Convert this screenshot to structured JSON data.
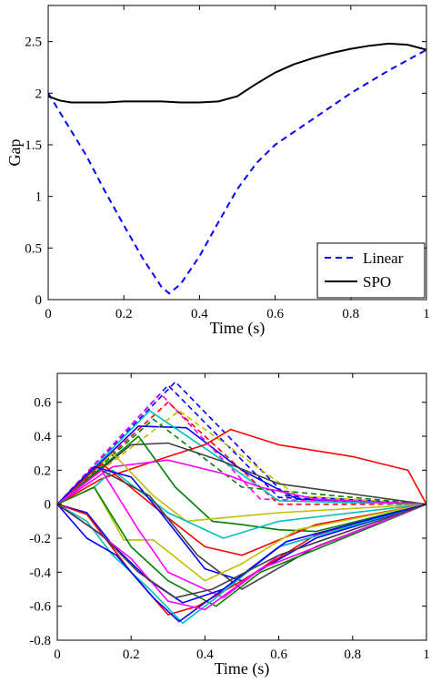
{
  "chart_data": [
    {
      "type": "line",
      "title": "",
      "xlabel": "Time (s)",
      "ylabel": "Gap",
      "xlim": [
        0,
        1
      ],
      "ylim": [
        0,
        2.85
      ],
      "xticks": [
        0,
        0.2,
        0.4,
        0.6,
        0.8,
        1
      ],
      "xtick_labels": [
        "0",
        "0.2",
        "0.4",
        "0.6",
        "0.8",
        "1"
      ],
      "yticks": [
        0,
        0.5,
        1,
        1.5,
        2,
        2.5
      ],
      "ytick_labels": [
        "0",
        "0.5",
        "1",
        "1.5",
        "2",
        "2.5"
      ],
      "grid": false,
      "legend_position": "bottom-right",
      "series": [
        {
          "name": "Linear",
          "color": "#0000ff",
          "style": "dashed",
          "x": [
            0,
            0.05,
            0.1,
            0.15,
            0.2,
            0.25,
            0.3,
            0.32,
            0.35,
            0.4,
            0.45,
            0.5,
            0.55,
            0.6,
            0.62,
            0.7,
            0.8,
            0.9,
            1.0
          ],
          "y": [
            2.0,
            1.7,
            1.4,
            1.05,
            0.72,
            0.4,
            0.12,
            0.06,
            0.15,
            0.42,
            0.75,
            1.07,
            1.32,
            1.5,
            1.55,
            1.75,
            2.0,
            2.22,
            2.42
          ]
        },
        {
          "name": "SPO",
          "color": "#000000",
          "style": "solid",
          "x": [
            0,
            0.03,
            0.06,
            0.1,
            0.15,
            0.2,
            0.25,
            0.3,
            0.35,
            0.4,
            0.45,
            0.5,
            0.55,
            0.6,
            0.65,
            0.7,
            0.75,
            0.8,
            0.85,
            0.9,
            0.95,
            1.0
          ],
          "y": [
            1.97,
            1.93,
            1.91,
            1.91,
            1.91,
            1.92,
            1.92,
            1.92,
            1.91,
            1.91,
            1.92,
            1.97,
            2.09,
            2.2,
            2.28,
            2.34,
            2.39,
            2.43,
            2.46,
            2.48,
            2.47,
            2.42
          ]
        }
      ]
    },
    {
      "type": "line",
      "title": "",
      "xlabel": "Time (s)",
      "ylabel": "",
      "xlim": [
        0,
        1
      ],
      "ylim": [
        -0.8,
        0.77
      ],
      "xticks": [
        0,
        0.2,
        0.4,
        0.6,
        0.8,
        1
      ],
      "xtick_labels": [
        "0",
        "0.2",
        "0.4",
        "0.6",
        "0.8",
        "1"
      ],
      "yticks": [
        -0.8,
        -0.6,
        -0.4,
        -0.2,
        0,
        0.2,
        0.4,
        0.6
      ],
      "ytick_labels": [
        "-0.8",
        "-0.6",
        "-0.4",
        "-0.2",
        "0",
        "0.2",
        "0.4",
        "0.6"
      ],
      "grid": false,
      "legend_position": "none",
      "series": [
        {
          "color": "#0000ff",
          "style": "dashed",
          "x": [
            0,
            0.32,
            0.62,
            1
          ],
          "y": [
            0,
            0.72,
            0.05,
            0
          ]
        },
        {
          "color": "#0000ff",
          "style": "dashed",
          "x": [
            0,
            0.3,
            0.6,
            1
          ],
          "y": [
            0,
            0.7,
            0.04,
            0
          ]
        },
        {
          "color": "#0000ff",
          "style": "solid",
          "x": [
            0,
            0.22,
            0.35,
            0.5,
            0.65,
            1
          ],
          "y": [
            0,
            0.46,
            0.45,
            0.2,
            0.03,
            0
          ]
        },
        {
          "color": "#ff00ff",
          "style": "dashed",
          "x": [
            0,
            0.28,
            0.55,
            1
          ],
          "y": [
            0,
            0.65,
            0.03,
            0
          ]
        },
        {
          "color": "#ff0000",
          "style": "dashed",
          "x": [
            0,
            0.3,
            0.6,
            1
          ],
          "y": [
            0,
            0.6,
            0.0,
            0
          ]
        },
        {
          "color": "#00bfbf",
          "style": "solid",
          "x": [
            0,
            0.25,
            0.42,
            0.6,
            1
          ],
          "y": [
            0,
            0.55,
            0.3,
            0.02,
            0
          ]
        },
        {
          "color": "#bfbf00",
          "style": "dashed",
          "x": [
            0,
            0.33,
            0.65,
            1
          ],
          "y": [
            0,
            0.55,
            0.05,
            0
          ]
        },
        {
          "color": "#008000",
          "style": "dashed",
          "x": [
            0,
            0.26,
            0.5,
            0.8,
            1
          ],
          "y": [
            0,
            0.5,
            0.1,
            0.04,
            0
          ]
        },
        {
          "color": "#ff0000",
          "style": "solid",
          "x": [
            0,
            0.12,
            0.3,
            0.4,
            0.47,
            0.6,
            0.8,
            0.95,
            1
          ],
          "y": [
            0,
            0.15,
            0.28,
            0.35,
            0.44,
            0.35,
            0.28,
            0.2,
            0
          ]
        },
        {
          "color": "#404040",
          "style": "solid",
          "x": [
            0,
            0.2,
            0.3,
            0.45,
            0.6,
            0.8,
            1
          ],
          "y": [
            0,
            0.35,
            0.36,
            0.25,
            0.12,
            0.06,
            0
          ]
        },
        {
          "color": "#ff00ff",
          "style": "solid",
          "x": [
            0,
            0.15,
            0.3,
            0.45,
            0.55,
            0.7,
            1
          ],
          "y": [
            0,
            0.22,
            0.26,
            0.18,
            0.1,
            0.03,
            0
          ]
        },
        {
          "color": "#008000",
          "style": "solid",
          "x": [
            0,
            0.22,
            0.32,
            0.42,
            0.5,
            0.6,
            0.7,
            1
          ],
          "y": [
            0,
            0.4,
            0.1,
            -0.1,
            -0.12,
            -0.15,
            -0.16,
            0
          ]
        },
        {
          "color": "#bfbf00",
          "style": "solid",
          "x": [
            0,
            0.15,
            0.26,
            0.35,
            0.45,
            0.6,
            1
          ],
          "y": [
            0,
            0.3,
            0.05,
            -0.1,
            -0.08,
            -0.05,
            0
          ]
        },
        {
          "color": "#00bfbf",
          "style": "solid",
          "x": [
            0,
            0.1,
            0.15,
            0.3,
            0.45,
            0.6,
            1
          ],
          "y": [
            0,
            0.1,
            0.2,
            -0.05,
            -0.2,
            -0.1,
            0
          ]
        },
        {
          "color": "#ff0000",
          "style": "solid",
          "x": [
            0,
            0.12,
            0.3,
            0.4,
            0.5,
            0.7,
            1
          ],
          "y": [
            0,
            0.24,
            -0.08,
            -0.25,
            -0.3,
            -0.12,
            0
          ]
        },
        {
          "color": "#0000ff",
          "style": "solid",
          "x": [
            0,
            0.1,
            0.2,
            0.28,
            0.4,
            0.5,
            0.7,
            1
          ],
          "y": [
            0,
            0.22,
            0.16,
            -0.05,
            -0.38,
            -0.45,
            -0.2,
            0
          ]
        },
        {
          "color": "#404040",
          "style": "solid",
          "x": [
            0,
            0.12,
            0.25,
            0.38,
            0.5,
            0.7,
            1
          ],
          "y": [
            0,
            0.2,
            0.05,
            -0.3,
            -0.5,
            -0.25,
            0
          ]
        },
        {
          "color": "#bfbf00",
          "style": "solid",
          "x": [
            0,
            0.1,
            0.18,
            0.26,
            0.4,
            0.5,
            0.65,
            1
          ],
          "y": [
            0,
            0.1,
            -0.21,
            -0.21,
            -0.45,
            -0.35,
            -0.15,
            0
          ]
        },
        {
          "color": "#ff00ff",
          "style": "solid",
          "x": [
            0,
            0.12,
            0.22,
            0.3,
            0.45,
            0.6,
            1
          ],
          "y": [
            0,
            0.2,
            -0.15,
            -0.4,
            -0.55,
            -0.3,
            0
          ]
        },
        {
          "color": "#008000",
          "style": "solid",
          "x": [
            0,
            0.1,
            0.2,
            0.3,
            0.43,
            0.55,
            1
          ],
          "y": [
            0,
            0.1,
            -0.25,
            -0.45,
            -0.6,
            -0.4,
            0
          ]
        },
        {
          "color": "#0000ff",
          "style": "solid",
          "x": [
            0,
            0.08,
            0.15,
            0.25,
            0.34,
            0.45,
            0.6,
            1
          ],
          "y": [
            0,
            -0.05,
            -0.24,
            -0.45,
            -0.58,
            -0.5,
            -0.25,
            0
          ]
        },
        {
          "color": "#ff0000",
          "style": "solid",
          "x": [
            0,
            0.08,
            0.2,
            0.3,
            0.38,
            0.5,
            0.7,
            1
          ],
          "y": [
            0,
            -0.06,
            -0.4,
            -0.65,
            -0.6,
            -0.45,
            -0.18,
            0
          ]
        },
        {
          "color": "#00bfbf",
          "style": "solid",
          "x": [
            0,
            0.08,
            0.15,
            0.25,
            0.34,
            0.43,
            0.6,
            1
          ],
          "y": [
            0,
            -0.1,
            -0.3,
            -0.5,
            -0.7,
            -0.55,
            -0.25,
            0
          ]
        },
        {
          "color": "#0000ff",
          "style": "solid",
          "x": [
            0,
            0.08,
            0.16,
            0.26,
            0.33,
            0.45,
            0.62,
            1
          ],
          "y": [
            0,
            -0.2,
            -0.3,
            -0.55,
            -0.69,
            -0.5,
            -0.22,
            0
          ]
        },
        {
          "color": "#ff00ff",
          "style": "solid",
          "x": [
            0,
            0.1,
            0.2,
            0.3,
            0.4,
            0.55,
            1
          ],
          "y": [
            0,
            -0.15,
            -0.32,
            -0.57,
            -0.62,
            -0.38,
            0
          ]
        },
        {
          "color": "#404040",
          "style": "solid",
          "x": [
            0,
            0.12,
            0.22,
            0.32,
            0.42,
            0.6,
            1
          ],
          "y": [
            0,
            -0.18,
            -0.4,
            -0.55,
            -0.5,
            -0.3,
            0
          ]
        }
      ]
    }
  ]
}
